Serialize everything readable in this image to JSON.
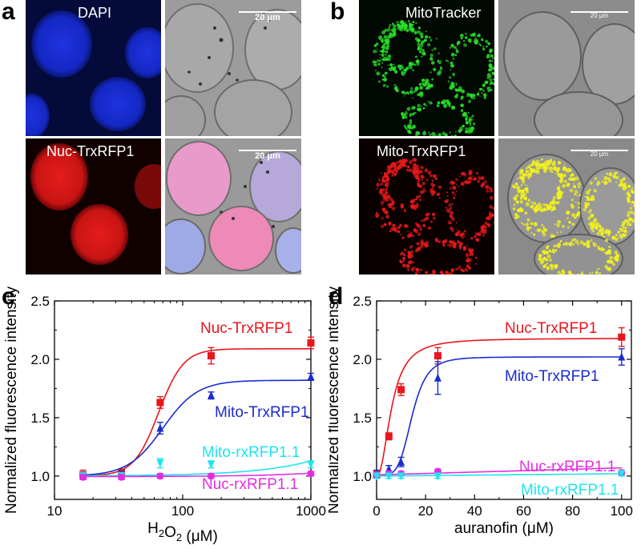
{
  "panels": {
    "a": {
      "letter": "a",
      "top_left_label": "DAPI",
      "bottom_left_label": "Nuc-TrxRFP1",
      "scale_label_top": "20 μm",
      "scale_label_bottom": "20 μm"
    },
    "b": {
      "letter": "b",
      "top_left_label": "MitoTracker",
      "bottom_left_label": "Mito-TrxRFP1",
      "scale_label_top": "20 μm",
      "scale_label_bottom": "20 μm"
    }
  },
  "colors": {
    "red": "#e8161e",
    "blue": "#1a2bd1",
    "cyan": "#1ee4ee",
    "magenta": "#e22ee0"
  },
  "chart_data": [
    {
      "panel": "c",
      "type": "scatter",
      "ylabel": "Normalized fluorescence intensity",
      "xlabel_main": "H",
      "xlabel_sub": "2",
      "xlabel_main2": "O",
      "xlabel_sub2": "2",
      "xlabel_unit": " (μM)",
      "x_scale": "log",
      "xlim": [
        10,
        1000
      ],
      "ylim": [
        0.8,
        2.5
      ],
      "x_ticks": [
        10,
        100,
        1000
      ],
      "x_tick_labels": [
        "10",
        "100",
        "1000"
      ],
      "y_ticks": [
        1.0,
        1.5,
        2.0,
        2.5
      ],
      "y_tick_labels": [
        "1.0",
        "1.5",
        "2.0",
        "2.5"
      ],
      "series": [
        {
          "name": "Nuc-TrxRFP1",
          "color": "red",
          "marker": "square",
          "x": [
            16.7,
            33.3,
            66.7,
            166.7,
            1000
          ],
          "y": [
            1.01,
            1.03,
            1.63,
            2.03,
            2.14
          ],
          "err": [
            0.04,
            0.03,
            0.05,
            0.07,
            0.05
          ],
          "fit": {
            "kind": "hill",
            "bottom": 1.0,
            "top": 2.09,
            "ec50": 65,
            "n": 4.5
          }
        },
        {
          "name": "Mito-TrxRFP1",
          "color": "blue",
          "marker": "triangle",
          "x": [
            16.7,
            33.3,
            66.7,
            166.7,
            1000
          ],
          "y": [
            1.0,
            1.01,
            1.41,
            1.69,
            1.85
          ],
          "err": [
            0.03,
            0.03,
            0.05,
            0.03,
            0.03
          ],
          "fit": {
            "kind": "hill",
            "bottom": 1.0,
            "top": 1.82,
            "ec50": 70,
            "n": 3.2
          }
        },
        {
          "name": "Mito-rxRFP1.1",
          "color": "cyan",
          "marker": "triangle-down",
          "x": [
            16.7,
            33.3,
            66.7,
            166.7,
            1000
          ],
          "y": [
            1.0,
            1.0,
            1.11,
            1.1,
            1.1
          ],
          "err": [
            0.03,
            0.03,
            0.04,
            0.03,
            0.03
          ],
          "fit": {
            "kind": "line",
            "a": 1.0,
            "b": 0.00013
          }
        },
        {
          "name": "Nuc-rxRFP1.1",
          "color": "magenta",
          "marker": "circle",
          "x": [
            16.7,
            33.3,
            66.7,
            166.7,
            1000
          ],
          "y": [
            0.99,
            0.99,
            1.0,
            1.0,
            1.02
          ],
          "err": [
            0.02,
            0.02,
            0.02,
            0.02,
            0.02
          ],
          "fit": {
            "kind": "line",
            "a": 0.995,
            "b": 3e-05
          }
        }
      ]
    },
    {
      "panel": "d",
      "type": "scatter",
      "ylabel": "Normalized fluorescence intensity",
      "xlabel": "auranofin (μM)",
      "x_scale": "linear",
      "xlim": [
        0,
        104
      ],
      "ylim": [
        0.8,
        2.5
      ],
      "x_ticks": [
        0,
        20,
        40,
        60,
        80,
        100
      ],
      "x_tick_labels": [
        "0",
        "20",
        "40",
        "60",
        "80",
        "100"
      ],
      "y_ticks": [
        1.0,
        1.5,
        2.0,
        2.5
      ],
      "y_tick_labels": [
        "1.0",
        "1.5",
        "2.0",
        "2.5"
      ],
      "series": [
        {
          "name": "Nuc-TrxRFP1",
          "color": "red",
          "marker": "square",
          "x": [
            0,
            5,
            10,
            25,
            100
          ],
          "y": [
            1.01,
            1.34,
            1.74,
            2.03,
            2.19
          ],
          "err": [
            0.03,
            0.03,
            0.05,
            0.07,
            0.08
          ],
          "fit": {
            "kind": "hill",
            "bottom": 1.0,
            "top": 2.18,
            "ec50": 6.2,
            "n": 2.2
          }
        },
        {
          "name": "Mito-TrxRFP1",
          "color": "blue",
          "marker": "triangle",
          "x": [
            0,
            5,
            10,
            25,
            100
          ],
          "y": [
            1.02,
            1.06,
            1.12,
            1.84,
            2.02
          ],
          "err": [
            0.03,
            0.03,
            0.04,
            0.14,
            0.07
          ],
          "fit": {
            "kind": "hill",
            "bottom": 1.01,
            "top": 2.02,
            "ec50": 14.5,
            "n": 4.8
          }
        },
        {
          "name": "Nuc-rxRFP1.1",
          "color": "magenta",
          "marker": "circle",
          "x": [
            0,
            5,
            10,
            25,
            100
          ],
          "y": [
            1.01,
            1.02,
            1.02,
            1.04,
            1.03
          ],
          "err": [
            0.02,
            0.02,
            0.02,
            0.02,
            0.02
          ],
          "fit": {
            "kind": "line",
            "a": 1.01,
            "b": 0.0006
          }
        },
        {
          "name": "Mito-rxRFP1.1",
          "color": "cyan",
          "marker": "triangle-down",
          "x": [
            0,
            5,
            10,
            25,
            100
          ],
          "y": [
            1.0,
            1.0,
            1.0,
            1.0,
            1.02
          ],
          "err": [
            0.02,
            0.02,
            0.02,
            0.02,
            0.02
          ],
          "fit": {
            "kind": "line",
            "a": 1.0,
            "b": 0.0002
          }
        }
      ]
    }
  ]
}
